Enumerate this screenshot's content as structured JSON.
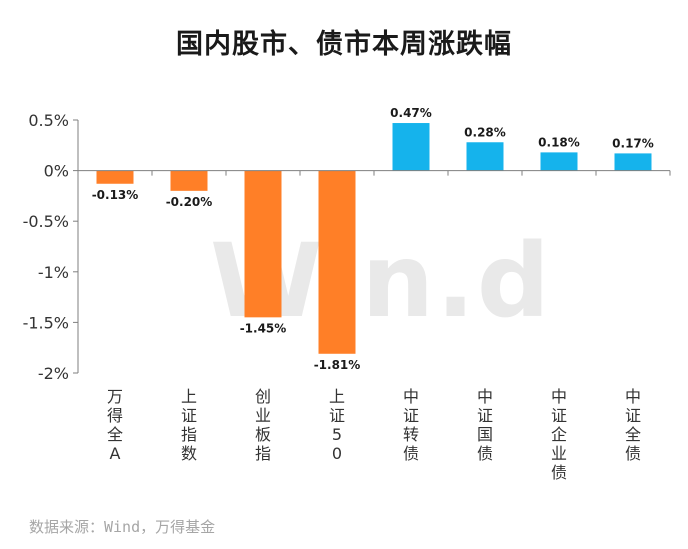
{
  "title": "国内股市、债市本周涨跌幅",
  "watermark": "Win.d",
  "source": "数据来源：Wind，万得基金",
  "chart_data": {
    "type": "bar",
    "title": "国内股市、债市本周涨跌幅",
    "categories": [
      "万得全A",
      "上证指数",
      "创业板指",
      "上证50",
      "中证转债",
      "中证国债",
      "中证企业债",
      "中证全债"
    ],
    "values": [
      -0.13,
      -0.2,
      -1.45,
      -1.81,
      0.47,
      0.28,
      0.18,
      0.17
    ],
    "value_labels": [
      "-0.13%",
      "-0.20%",
      "-1.45%",
      "-1.81%",
      "0.47%",
      "0.28%",
      "0.18%",
      "0.17%"
    ],
    "bar_colors": [
      "#FF7F27",
      "#FF7F27",
      "#FF7F27",
      "#FF7F27",
      "#15B3EC",
      "#15B3EC",
      "#15B3EC",
      "#15B3EC"
    ],
    "ylim": [
      -2,
      0.5
    ],
    "yticks": [
      0.5,
      0,
      -0.5,
      -1,
      -1.5,
      -2
    ],
    "ytick_labels": [
      "0.5%",
      "0%",
      "-0.5%",
      "-1%",
      "-1.5%",
      "-2%"
    ],
    "xlabel": "",
    "ylabel": "",
    "grid": false,
    "legend": "none"
  }
}
